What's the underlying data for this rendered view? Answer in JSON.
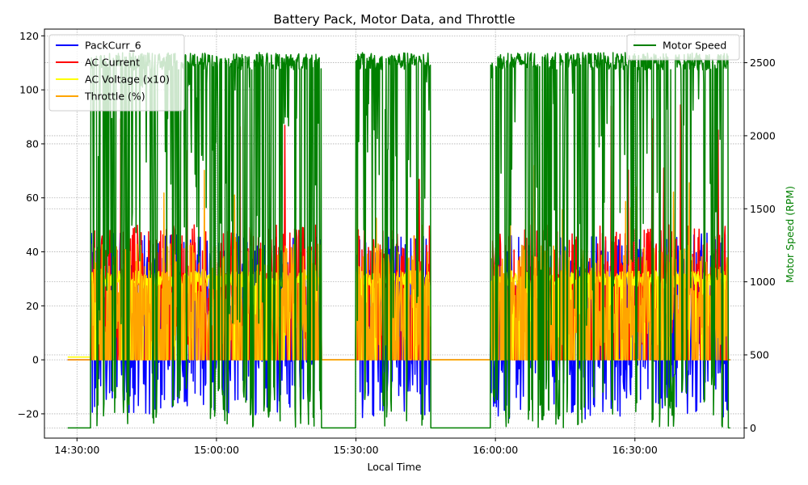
{
  "chart_data": {
    "type": "line",
    "title": "Battery Pack, Motor Data, and Throttle",
    "xlabel": "Local Time",
    "ylabel_left": "",
    "ylabel_right": "Motor Speed (RPM)",
    "xlim": [
      "14:23:00",
      "16:53:30"
    ],
    "ylim_left": [
      -29,
      122.5
    ],
    "ylim_right": [
      -70,
      2730
    ],
    "x_ticks": [
      "14:30:00",
      "15:00:00",
      "15:30:00",
      "16:00:00",
      "16:30:00"
    ],
    "y_ticks_left": [
      -20,
      0,
      20,
      40,
      60,
      80,
      100,
      120
    ],
    "y_ticks_right": [
      0,
      500,
      1000,
      1500,
      2000,
      2500
    ],
    "grid": true,
    "legend_left": "upper-left",
    "legend_right": "upper-right",
    "active_intervals": [
      [
        "14:33:00",
        "15:22:30"
      ],
      [
        "15:30:00",
        "15:46:00"
      ],
      [
        "15:59:00",
        "16:50:00"
      ]
    ],
    "series": [
      {
        "name": "PackCurr_6",
        "axis": "left",
        "color": "#0000ff",
        "range": [
          -22,
          48
        ]
      },
      {
        "name": "AC Current",
        "axis": "left",
        "color": "#ff0000",
        "range": [
          0,
          116
        ]
      },
      {
        "name": "AC Voltage (x10)",
        "axis": "left",
        "color": "#ffff00",
        "range": [
          0,
          34
        ]
      },
      {
        "name": "Throttle (%)",
        "axis": "left",
        "color": "#ffa500",
        "range": [
          0,
          75
        ]
      },
      {
        "name": "Motor Speed",
        "axis": "right",
        "color": "#008000",
        "range": [
          0,
          2600
        ]
      }
    ]
  }
}
